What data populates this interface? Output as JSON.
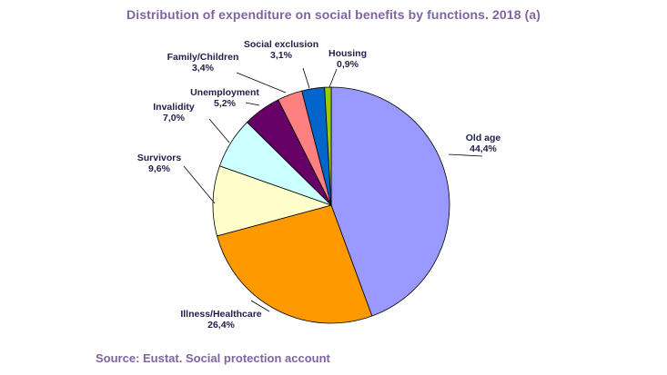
{
  "chart_data": {
    "type": "pie",
    "title": "Distribution of expenditure on social benefits by functions. 2018 (a)",
    "slices": [
      {
        "label": "Old age",
        "value": 44.4,
        "value_text": "44,4%",
        "color": "#9999FF"
      },
      {
        "label": "Illness/Healthcare",
        "value": 26.4,
        "value_text": "26,4%",
        "color": "#FF9900"
      },
      {
        "label": "Survivors",
        "value": 9.6,
        "value_text": "9,6%",
        "color": "#FFFFCC"
      },
      {
        "label": "Invalidity",
        "value": 7.0,
        "value_text": "7,0%",
        "color": "#CCFFFF"
      },
      {
        "label": "Unemployment",
        "value": 5.2,
        "value_text": "5,2%",
        "color": "#660066"
      },
      {
        "label": "Family/Children",
        "value": 3.4,
        "value_text": "3,4%",
        "color": "#FF8080"
      },
      {
        "label": "Social exclusion",
        "value": 3.1,
        "value_text": "3,1%",
        "color": "#0066CC"
      },
      {
        "label": "Housing",
        "value": 0.9,
        "value_text": "0,9%",
        "color": "#99CC00"
      }
    ],
    "start": "12 o'clock",
    "direction": "clockwise"
  },
  "source": "Source: Eustat. Social protection account"
}
